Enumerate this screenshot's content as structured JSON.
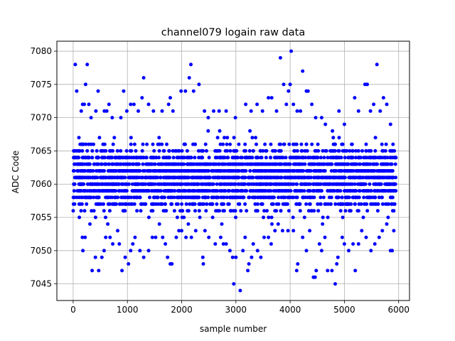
{
  "chart_data": {
    "type": "scatter",
    "title": "channel079 logain raw data",
    "xlabel": "sample number",
    "ylabel": "ADC Code",
    "xlim": [
      -300,
      6200
    ],
    "ylim": [
      7042.5,
      7081.5
    ],
    "xticks": [
      0,
      1000,
      2000,
      3000,
      4000,
      5000,
      6000
    ],
    "yticks": [
      7045,
      7050,
      7055,
      7060,
      7065,
      7070,
      7075,
      7080
    ],
    "grid": true,
    "marker_color": "#0000ff",
    "series": [
      {
        "points": [
          [
            40,
            7078
          ],
          [
            65,
            7074
          ],
          [
            150,
            7071
          ],
          [
            175,
            7072
          ],
          [
            205,
            7072
          ],
          [
            230,
            7075
          ],
          [
            260,
            7078
          ],
          [
            290,
            7072
          ],
          [
            330,
            7070
          ],
          [
            420,
            7071
          ],
          [
            460,
            7074
          ],
          [
            575,
            7071
          ],
          [
            620,
            7071
          ],
          [
            660,
            7072
          ],
          [
            720,
            7070
          ],
          [
            880,
            7070
          ],
          [
            930,
            7074
          ],
          [
            990,
            7071
          ],
          [
            1060,
            7072
          ],
          [
            1120,
            7072
          ],
          [
            1200,
            7071
          ],
          [
            1300,
            7076
          ],
          [
            1270,
            7073
          ],
          [
            1390,
            7072
          ],
          [
            1480,
            7071
          ],
          [
            1640,
            7071
          ],
          [
            1760,
            7072
          ],
          [
            1790,
            7073
          ],
          [
            1840,
            7071
          ],
          [
            1990,
            7074
          ],
          [
            2070,
            7074
          ],
          [
            2140,
            7076
          ],
          [
            2170,
            7078
          ],
          [
            2220,
            7074
          ],
          [
            2320,
            7075
          ],
          [
            2420,
            7071
          ],
          [
            2490,
            7070
          ],
          [
            2590,
            7071
          ],
          [
            2690,
            7071
          ],
          [
            2820,
            7071
          ],
          [
            2990,
            7070
          ],
          [
            3180,
            7072
          ],
          [
            3280,
            7071
          ],
          [
            3390,
            7072
          ],
          [
            3490,
            7071
          ],
          [
            3600,
            7073
          ],
          [
            3660,
            7073
          ],
          [
            3750,
            7071
          ],
          [
            3820,
            7079
          ],
          [
            3880,
            7075
          ],
          [
            3930,
            7072
          ],
          [
            3970,
            7074
          ],
          [
            4000,
            7075
          ],
          [
            4020,
            7080
          ],
          [
            4060,
            7072
          ],
          [
            4130,
            7071
          ],
          [
            4190,
            7071
          ],
          [
            4230,
            7077
          ],
          [
            4300,
            7074
          ],
          [
            4330,
            7074
          ],
          [
            4400,
            7072
          ],
          [
            4470,
            7070
          ],
          [
            4580,
            7070
          ],
          [
            4650,
            7069
          ],
          [
            4780,
            7068
          ],
          [
            4900,
            7071
          ],
          [
            5000,
            7069
          ],
          [
            5190,
            7073
          ],
          [
            5260,
            7071
          ],
          [
            5380,
            7075
          ],
          [
            5420,
            7075
          ],
          [
            5480,
            7071
          ],
          [
            5540,
            7072
          ],
          [
            5600,
            7078
          ],
          [
            5660,
            7071
          ],
          [
            5720,
            7073
          ],
          [
            5780,
            7072
          ],
          [
            5850,
            7069
          ],
          [
            180,
            7050
          ],
          [
            170,
            7052
          ],
          [
            220,
            7052
          ],
          [
            310,
            7054
          ],
          [
            350,
            7047
          ],
          [
            410,
            7049
          ],
          [
            470,
            7047
          ],
          [
            530,
            7049
          ],
          [
            570,
            7050
          ],
          [
            600,
            7052
          ],
          [
            680,
            7052
          ],
          [
            730,
            7051
          ],
          [
            820,
            7053
          ],
          [
            850,
            7051
          ],
          [
            900,
            7047
          ],
          [
            960,
            7049
          ],
          [
            1020,
            7048
          ],
          [
            1060,
            7050
          ],
          [
            1100,
            7051
          ],
          [
            1140,
            7052
          ],
          [
            1230,
            7050
          ],
          [
            1300,
            7049
          ],
          [
            1390,
            7050
          ],
          [
            1460,
            7052
          ],
          [
            1520,
            7052
          ],
          [
            1590,
            7054
          ],
          [
            1650,
            7052
          ],
          [
            1700,
            7051
          ],
          [
            1740,
            7049
          ],
          [
            1790,
            7048
          ],
          [
            1820,
            7048
          ],
          [
            1900,
            7052
          ],
          [
            1950,
            7053
          ],
          [
            2000,
            7053
          ],
          [
            2080,
            7052
          ],
          [
            2180,
            7052
          ],
          [
            2260,
            7053
          ],
          [
            2390,
            7049
          ],
          [
            2400,
            7048
          ],
          [
            2430,
            7053
          ],
          [
            2500,
            7052
          ],
          [
            2620,
            7051
          ],
          [
            2720,
            7052
          ],
          [
            2770,
            7051
          ],
          [
            2820,
            7051
          ],
          [
            2890,
            7050
          ],
          [
            2940,
            7049
          ],
          [
            2960,
            7045
          ],
          [
            3000,
            7049
          ],
          [
            3080,
            7044
          ],
          [
            3130,
            7050
          ],
          [
            3170,
            7052
          ],
          [
            3220,
            7047
          ],
          [
            3240,
            7048
          ],
          [
            3290,
            7049
          ],
          [
            3320,
            7051
          ],
          [
            3400,
            7050
          ],
          [
            3460,
            7049
          ],
          [
            3520,
            7052
          ],
          [
            3600,
            7052
          ],
          [
            3650,
            7051
          ],
          [
            3720,
            7053
          ],
          [
            3780,
            7054
          ],
          [
            3860,
            7053
          ],
          [
            3960,
            7053
          ],
          [
            4060,
            7053
          ],
          [
            4120,
            7047
          ],
          [
            4140,
            7048
          ],
          [
            4230,
            7052
          ],
          [
            4300,
            7050
          ],
          [
            4360,
            7053
          ],
          [
            4430,
            7046
          ],
          [
            4460,
            7046
          ],
          [
            4480,
            7047
          ],
          [
            4540,
            7051
          ],
          [
            4580,
            7050
          ],
          [
            4640,
            7052
          ],
          [
            4690,
            7047
          ],
          [
            4770,
            7047
          ],
          [
            4830,
            7045
          ],
          [
            4860,
            7048
          ],
          [
            4880,
            7049
          ],
          [
            4960,
            7052
          ],
          [
            5000,
            7051
          ],
          [
            5080,
            7050
          ],
          [
            5160,
            7051
          ],
          [
            5200,
            7047
          ],
          [
            5260,
            7051
          ],
          [
            5320,
            7053
          ],
          [
            5400,
            7052
          ],
          [
            5490,
            7050
          ],
          [
            5560,
            7051
          ],
          [
            5640,
            7052
          ],
          [
            5700,
            7053
          ],
          [
            5780,
            7054
          ],
          [
            5850,
            7050
          ],
          [
            5880,
            7050
          ],
          [
            5910,
            7053
          ]
        ]
      }
    ]
  }
}
